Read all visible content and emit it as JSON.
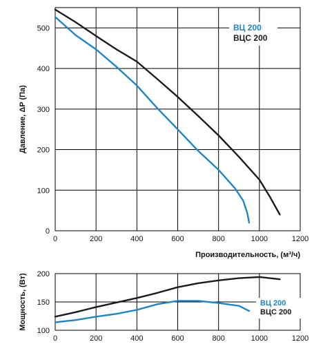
{
  "chart_data": [
    {
      "type": "line",
      "title": "",
      "xlabel": "Производительность, (м³/ч)",
      "ylabel": "Давление, ΔP (Па)",
      "xlim": [
        0,
        1200
      ],
      "ylim": [
        0,
        550
      ],
      "x_ticks": [
        0,
        200,
        400,
        600,
        800,
        1000,
        1200
      ],
      "y_ticks": [
        0,
        100,
        200,
        300,
        400,
        500
      ],
      "grid": true,
      "legend": "top-right",
      "series": [
        {
          "name": "ВЦ 200",
          "color": "#1a86c8",
          "points": [
            [
              0,
              527
            ],
            [
              100,
              482
            ],
            [
              200,
              447
            ],
            [
              300,
              404
            ],
            [
              400,
              358
            ],
            [
              500,
              302
            ],
            [
              600,
              250
            ],
            [
              700,
              197
            ],
            [
              800,
              150
            ],
            [
              880,
              105
            ],
            [
              920,
              75
            ],
            [
              940,
              45
            ],
            [
              950,
              20
            ]
          ]
        },
        {
          "name": "ВЦС 200",
          "color": "#1a1a1a",
          "points": [
            [
              0,
              545
            ],
            [
              100,
              514
            ],
            [
              200,
              480
            ],
            [
              300,
              447
            ],
            [
              400,
              417
            ],
            [
              500,
              374
            ],
            [
              600,
              330
            ],
            [
              700,
              283
            ],
            [
              800,
              235
            ],
            [
              900,
              182
            ],
            [
              1000,
              126
            ],
            [
              1050,
              85
            ],
            [
              1100,
              40
            ]
          ]
        }
      ]
    },
    {
      "type": "line",
      "title": "",
      "xlabel": "",
      "ylabel": "Мощность, (Вт)",
      "xlim": [
        0,
        1200
      ],
      "ylim": [
        100,
        200
      ],
      "x_ticks": [
        0,
        200,
        400,
        600,
        800,
        1000,
        1200
      ],
      "y_ticks": [
        100,
        150,
        200
      ],
      "grid": true,
      "legend": "right",
      "series": [
        {
          "name": "ВЦ 200",
          "color": "#1a86c8",
          "points": [
            [
              0,
              114
            ],
            [
              100,
              118
            ],
            [
              200,
              124
            ],
            [
              300,
              129
            ],
            [
              400,
              136
            ],
            [
              500,
              146
            ],
            [
              600,
              152
            ],
            [
              700,
              152
            ],
            [
              800,
              148
            ],
            [
              900,
              143
            ],
            [
              950,
              134
            ]
          ]
        },
        {
          "name": "ВЦС 200",
          "color": "#1a1a1a",
          "points": [
            [
              0,
              124
            ],
            [
              100,
              132
            ],
            [
              200,
              141
            ],
            [
              300,
              149
            ],
            [
              400,
              157
            ],
            [
              500,
              166
            ],
            [
              600,
              176
            ],
            [
              700,
              183
            ],
            [
              800,
              188
            ],
            [
              900,
              192
            ],
            [
              1000,
              194
            ],
            [
              1100,
              190
            ]
          ]
        }
      ]
    }
  ]
}
